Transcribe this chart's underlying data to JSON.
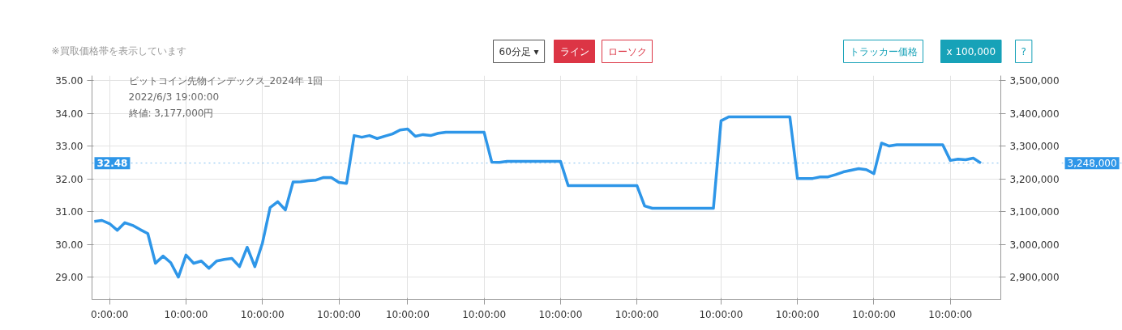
{
  "chart_data": {
    "type": "line",
    "title": "ビットコイン先物インデックス_2024年 1回",
    "annotations": [
      "2022/6/3 19:00:00",
      "終値: 3,177,000円",
      "※買取価格帯を表示しています",
      "60分足 ▾",
      "ライン",
      "ローソク",
      "トラッカー価格",
      "x 100,000",
      "?",
      "3,248,000"
    ],
    "categories": [
      null,
      null,
      "0:00:00",
      null,
      null,
      null,
      null,
      null,
      null,
      null,
      null,
      null,
      "10:00:00",
      null,
      null,
      null,
      null,
      null,
      null,
      null,
      null,
      null,
      "10:00:00",
      null,
      null,
      null,
      null,
      null,
      null,
      null,
      null,
      null,
      "10:00:00",
      null,
      null,
      null,
      null,
      null,
      null,
      null,
      null,
      "10:00:00",
      null,
      null,
      null,
      null,
      null,
      null,
      null,
      null,
      null,
      "10:00:00",
      null,
      null,
      null,
      null,
      null,
      null,
      null,
      null,
      null,
      "10:00:00",
      null,
      null,
      null,
      null,
      null,
      null,
      null,
      null,
      null,
      "10:00:00",
      null,
      null,
      null,
      null,
      null,
      null,
      null,
      null,
      null,
      null,
      "10:00:00",
      null,
      null,
      null,
      null,
      null,
      null,
      null,
      null,
      null,
      "10:00:00",
      null,
      null,
      null,
      null,
      null,
      null,
      null,
      null,
      null,
      "10:00:00",
      null,
      null,
      null,
      null,
      null,
      null,
      null,
      null,
      null,
      "10:00:00",
      null,
      null,
      null,
      null
    ],
    "series": [
      {
        "color": "#2e96e8",
        "values": [
          30.7,
          30.73,
          30.63,
          30.43,
          30.66,
          30.58,
          30.45,
          30.33,
          29.42,
          29.64,
          29.44,
          29.0,
          29.67,
          29.42,
          29.49,
          29.27,
          29.49,
          29.54,
          29.57,
          29.32,
          29.91,
          29.32,
          30.04,
          31.12,
          31.3,
          31.05,
          31.9,
          31.91,
          31.94,
          31.96,
          32.04,
          32.04,
          31.89,
          31.86,
          33.32,
          33.27,
          33.32,
          33.23,
          33.3,
          33.37,
          33.49,
          33.52,
          33.3,
          33.35,
          33.32,
          33.39,
          33.42,
          33.42,
          33.42,
          33.42,
          33.42,
          33.42,
          32.51,
          32.5,
          32.53,
          32.53,
          32.53,
          32.53,
          32.53,
          32.53,
          32.53,
          32.53,
          31.79,
          31.79,
          31.79,
          31.79,
          31.79,
          31.79,
          31.79,
          31.79,
          31.79,
          31.79,
          31.17,
          31.1,
          31.1,
          31.1,
          31.1,
          31.1,
          31.1,
          31.1,
          31.1,
          31.1,
          33.77,
          33.89,
          33.89,
          33.89,
          33.89,
          33.89,
          33.89,
          33.89,
          33.89,
          33.89,
          32.01,
          32.01,
          32.01,
          32.06,
          32.06,
          32.13,
          32.21,
          32.26,
          32.31,
          32.28,
          32.16,
          33.09,
          33.0,
          33.04,
          33.04,
          33.04,
          33.04,
          33.04,
          33.04,
          33.04,
          32.56,
          32.6,
          32.58,
          32.63,
          32.48
        ]
      }
    ],
    "ylim": [
      28.31,
      35.15
    ],
    "yticks": [
      {
        "value": 29,
        "label": "29.00"
      },
      {
        "value": 30,
        "label": "30.00"
      },
      {
        "value": 31,
        "label": "31.00"
      },
      {
        "value": 32,
        "label": "32.00"
      },
      {
        "value": 33,
        "label": "33.00"
      },
      {
        "value": 34,
        "label": "34.00"
      },
      {
        "value": 35,
        "label": "35.00"
      }
    ],
    "y2lim": [
      2831000,
      3515000
    ],
    "y2ticks": [
      {
        "value": 2900000,
        "label": "2,900,000"
      },
      {
        "value": 3000000,
        "label": "3,000,000"
      },
      {
        "value": 3100000,
        "label": "3,100,000"
      },
      {
        "value": 3200000,
        "label": "3,200,000"
      },
      {
        "value": 3300000,
        "label": "3,300,000"
      },
      {
        "value": 3400000,
        "label": "3,400,000"
      },
      {
        "value": 3500000,
        "label": "3,500,000"
      }
    ],
    "ref_lines": [
      {
        "axis": "y",
        "value": 32.48,
        "label": "32.48",
        "color": "#2e96e8",
        "line_style": "dotted"
      }
    ],
    "grid": true,
    "marker": "none",
    "line_style": "solid"
  }
}
